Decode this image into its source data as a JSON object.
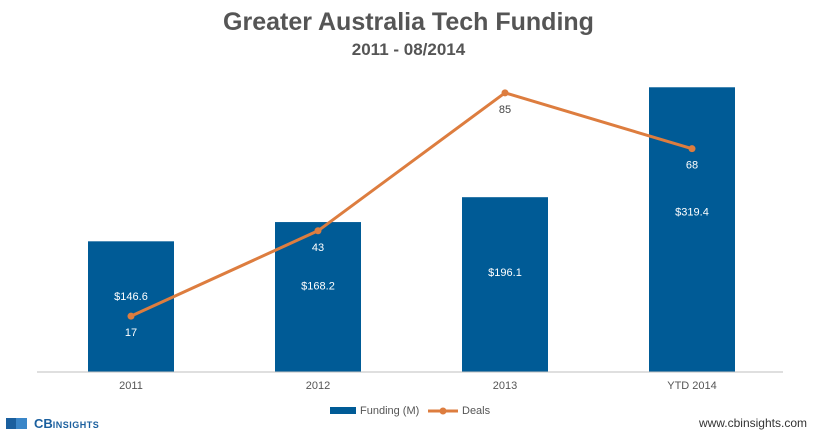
{
  "chart_data": {
    "type": "bar",
    "title": "Greater Australia Tech Funding",
    "subtitle": "2011 - 08/2014",
    "categories": [
      "2011",
      "2012",
      "2013",
      "YTD 2014"
    ],
    "series": [
      {
        "name": "Funding (M)",
        "kind": "bar",
        "values": [
          146.6,
          168.2,
          196.1,
          319.4
        ],
        "labels": [
          "$146.6",
          "$168.2",
          "$196.1",
          "$319.4"
        ],
        "color": "#005b96"
      },
      {
        "name": "Deals",
        "kind": "line",
        "values": [
          17,
          43,
          85,
          68
        ],
        "labels": [
          "17",
          "43",
          "85",
          "68"
        ],
        "color": "#dd7d3f"
      }
    ],
    "ylim_funding": [
      0,
      350
    ],
    "ylim_deals": [
      0,
      95
    ],
    "grid": false,
    "legend": "bottom-center"
  },
  "footer": {
    "brand_name": "CB",
    "brand_suffix": "INSIGHTS",
    "website": "www.cbinsights.com"
  }
}
